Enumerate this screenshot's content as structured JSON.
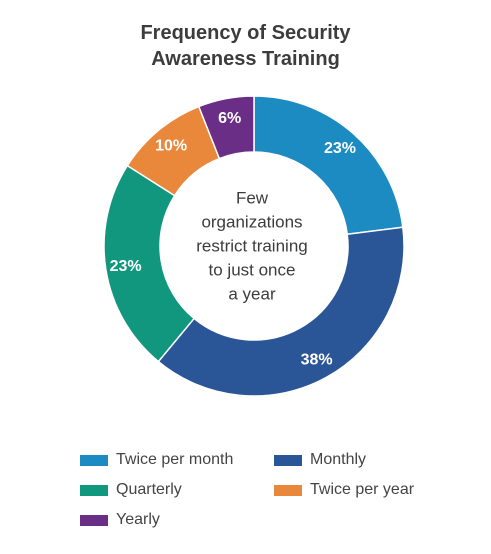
{
  "chart_data": {
    "type": "pie",
    "title_lines": [
      "Frequency of Security",
      "Awareness Training"
    ],
    "center_text": [
      "Few",
      "organizations",
      "restrict training",
      "to just once",
      "a year"
    ],
    "slices": [
      {
        "name": "Twice per month",
        "value": 23,
        "label": "23%",
        "color": "#1b8bc2"
      },
      {
        "name": "Monthly",
        "value": 38,
        "label": "38%",
        "color": "#2a5597"
      },
      {
        "name": "Quarterly",
        "value": 23,
        "label": "23%",
        "color": "#11977d"
      },
      {
        "name": "Twice per year",
        "value": 10,
        "label": "10%",
        "color": "#e9873b"
      },
      {
        "name": "Yearly",
        "value": 6,
        "label": "6%",
        "color": "#6b2e86"
      }
    ],
    "legend_position": "bottom"
  }
}
